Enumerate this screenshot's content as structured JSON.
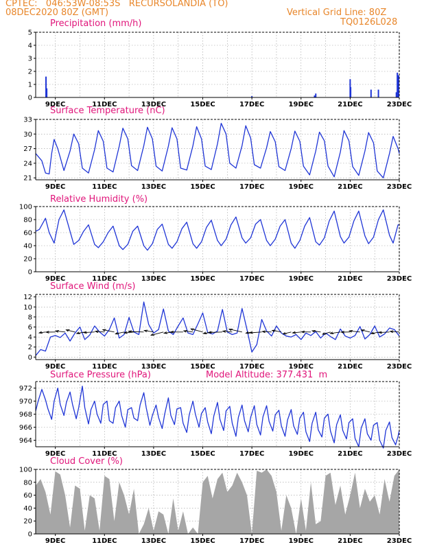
{
  "header": {
    "line1": "CPTEC:   046:53W-08:53S   RECURSOLANDIA (TO)",
    "line2": "08DEC2020 80Z (GMT)",
    "grid_note": "Vertical Grid Line: 80Z",
    "code": "TQ0126L028"
  },
  "colors": {
    "header": "#e8862a",
    "title": "#e0157a",
    "series": "#1f35d6",
    "cloud": "#a6a6a6",
    "wind_arrow": "#000000"
  },
  "panels": {
    "precip": {
      "title": "Precipitation (mm/h)"
    },
    "temp": {
      "title": "Surface Temperature (nC)"
    },
    "rh": {
      "title": "Relative Humidity (%)"
    },
    "wind": {
      "title": "Surface Wind (m/s)"
    },
    "pressure": {
      "title": "Surface Pressure (hPa)",
      "note": "Model Altitude: 377.431  m"
    },
    "cloud": {
      "title": "Cloud Cover (%)"
    }
  },
  "chart_data": [
    {
      "type": "bar",
      "name": "precip",
      "title": "Precipitation (mm/h)",
      "x_ticks": [
        "9DEC",
        "11DEC",
        "13DEC",
        "15DEC",
        "17DEC",
        "19DEC",
        "21DEC",
        "23DEC"
      ],
      "x_range_days": [
        8.2,
        23.0
      ],
      "ylim": [
        0,
        5
      ],
      "y_ticks": [
        0,
        1,
        2,
        3,
        4,
        5
      ],
      "bars": [
        [
          8.62,
          1.6
        ],
        [
          8.65,
          0.7
        ],
        [
          17.0,
          0.1
        ],
        [
          19.55,
          0.15
        ],
        [
          19.6,
          0.3
        ],
        [
          21.0,
          1.4
        ],
        [
          21.02,
          0.8
        ],
        [
          21.85,
          0.6
        ],
        [
          22.15,
          0.6
        ],
        [
          22.88,
          0.4
        ],
        [
          22.92,
          1.9
        ],
        [
          22.97,
          1.7
        ]
      ]
    },
    {
      "type": "line",
      "name": "temp",
      "title": "Surface Temperature (nC)",
      "x_range_days": [
        8.2,
        23.0
      ],
      "ylim": [
        20.6,
        33
      ],
      "y_ticks": [
        21,
        24,
        27,
        30,
        33
      ],
      "x": [
        8.2,
        8.45,
        8.6,
        8.75,
        8.85,
        8.95,
        9.1,
        9.35,
        9.6,
        9.75,
        9.95,
        10.1,
        10.35,
        10.6,
        10.75,
        10.95,
        11.1,
        11.35,
        11.6,
        11.75,
        11.95,
        12.1,
        12.35,
        12.6,
        12.75,
        12.95,
        13.1,
        13.35,
        13.6,
        13.75,
        13.95,
        14.1,
        14.35,
        14.6,
        14.75,
        14.95,
        15.1,
        15.35,
        15.6,
        15.75,
        15.95,
        16.1,
        16.35,
        16.6,
        16.75,
        16.95,
        17.1,
        17.35,
        17.6,
        17.75,
        17.95,
        18.1,
        18.35,
        18.6,
        18.75,
        18.95,
        19.1,
        19.35,
        19.6,
        19.75,
        19.95,
        20.1,
        20.35,
        20.6,
        20.75,
        20.95,
        21.1,
        21.35,
        21.6,
        21.75,
        21.95,
        22.1,
        22.35,
        22.6,
        22.75,
        22.95,
        23.0
      ],
      "values": [
        26.0,
        24.5,
        22.0,
        21.8,
        26,
        28.9,
        27,
        22.5,
        26.5,
        30.0,
        28,
        23,
        22.0,
        26.8,
        30.7,
        28.5,
        23.0,
        22.2,
        27.5,
        31.2,
        29,
        23.5,
        22.5,
        27.6,
        31.4,
        29,
        23.4,
        22.4,
        27.5,
        31.3,
        29,
        23.0,
        22.6,
        27.6,
        31.5,
        29,
        23.4,
        22.7,
        28.0,
        32.2,
        30,
        24.0,
        23.0,
        27.6,
        31.7,
        29.2,
        23.7,
        23.0,
        27.2,
        30.5,
        28.4,
        23.3,
        22.5,
        27.0,
        30.6,
        28.5,
        23.4,
        21.6,
        26.5,
        30.4,
        28.6,
        23.4,
        21.2,
        26.3,
        30.7,
        28.6,
        23.3,
        21.5,
        26.5,
        30.3,
        28.2,
        22.4,
        21.0,
        26.0,
        29.5,
        27.0,
        26.0
      ]
    },
    {
      "type": "line",
      "name": "rh",
      "title": "Relative Humidity (%)",
      "x_range_days": [
        8.2,
        23.0
      ],
      "ylim": [
        0,
        100
      ],
      "y_ticks": [
        0,
        20,
        40,
        60,
        80,
        100
      ],
      "x": [
        8.2,
        8.35,
        8.6,
        8.75,
        8.95,
        9.15,
        9.35,
        9.6,
        9.75,
        9.95,
        10.15,
        10.35,
        10.6,
        10.75,
        10.95,
        11.15,
        11.35,
        11.6,
        11.75,
        11.95,
        12.15,
        12.35,
        12.6,
        12.75,
        12.95,
        13.15,
        13.35,
        13.6,
        13.75,
        13.95,
        14.15,
        14.35,
        14.6,
        14.75,
        14.95,
        15.15,
        15.35,
        15.6,
        15.75,
        15.95,
        16.15,
        16.35,
        16.6,
        16.75,
        16.95,
        17.15,
        17.35,
        17.6,
        17.75,
        17.95,
        18.15,
        18.35,
        18.6,
        18.75,
        18.95,
        19.15,
        19.35,
        19.6,
        19.75,
        19.95,
        20.15,
        20.35,
        20.6,
        20.75,
        20.95,
        21.15,
        21.35,
        21.6,
        21.75,
        21.95,
        22.15,
        22.35,
        22.6,
        22.75,
        22.95,
        23.0
      ],
      "values": [
        62,
        65,
        82,
        60,
        44,
        80,
        95,
        62,
        42,
        48,
        62,
        72,
        42,
        37,
        46,
        60,
        70,
        40,
        34,
        42,
        62,
        70,
        40,
        33,
        43,
        65,
        73,
        42,
        36,
        46,
        66,
        76,
        43,
        36,
        46,
        68,
        79,
        48,
        40,
        50,
        72,
        84,
        52,
        44,
        52,
        73,
        80,
        48,
        40,
        50,
        70,
        80,
        44,
        36,
        48,
        70,
        83,
        46,
        41,
        52,
        78,
        93,
        54,
        44,
        53,
        78,
        93,
        55,
        43,
        53,
        80,
        95,
        56,
        44,
        72,
        72
      ]
    },
    {
      "type": "line",
      "name": "wind",
      "title": "Surface Wind (m/s)",
      "x_range_days": [
        8.2,
        23.0
      ],
      "ylim": [
        -0.5,
        12.5
      ],
      "y_ticks": [
        0,
        2,
        4,
        6,
        8,
        10,
        12
      ],
      "x": [
        8.2,
        8.4,
        8.6,
        8.8,
        9.0,
        9.2,
        9.4,
        9.6,
        9.8,
        10.0,
        10.2,
        10.4,
        10.6,
        10.8,
        11.0,
        11.2,
        11.4,
        11.6,
        11.8,
        12.0,
        12.2,
        12.4,
        12.6,
        12.8,
        13.0,
        13.2,
        13.4,
        13.6,
        13.8,
        14.0,
        14.2,
        14.4,
        14.6,
        14.8,
        15.0,
        15.2,
        15.4,
        15.6,
        15.8,
        16.0,
        16.2,
        16.4,
        16.6,
        16.8,
        17.0,
        17.2,
        17.4,
        17.6,
        17.8,
        18.0,
        18.2,
        18.4,
        18.6,
        18.8,
        19.0,
        19.2,
        19.4,
        19.6,
        19.8,
        20.0,
        20.2,
        20.4,
        20.6,
        20.8,
        21.0,
        21.2,
        21.4,
        21.6,
        21.8,
        22.0,
        22.2,
        22.4,
        22.6,
        22.8,
        23.0
      ],
      "values": [
        0.3,
        1.5,
        1.2,
        4.0,
        4.3,
        3.9,
        4.8,
        3.2,
        4.8,
        6.0,
        3.5,
        4.4,
        6.2,
        5.0,
        4.2,
        5.5,
        7.8,
        3.8,
        4.5,
        7.9,
        5.0,
        4.5,
        11.0,
        6.5,
        4.8,
        5.5,
        9.6,
        5.2,
        4.5,
        6.2,
        7.8,
        4.8,
        4.5,
        6.6,
        8.8,
        4.9,
        4.6,
        5.2,
        9.5,
        5.0,
        4.5,
        4.8,
        9.7,
        5.5,
        1.0,
        2.5,
        7.5,
        5.2,
        4.2,
        6.2,
        4.8,
        4.2,
        4.0,
        4.5,
        3.5,
        4.8,
        4.3,
        5.1,
        3.8,
        4.8,
        4.1,
        3.5,
        5.6,
        4.2,
        3.8,
        4.3,
        6.1,
        3.6,
        4.5,
        6.2,
        4.0,
        4.6,
        5.8,
        5.5,
        4.2
      ]
    },
    {
      "type": "line",
      "name": "pressure",
      "title": "Surface Pressure (hPa)",
      "note": "Model Altitude: 377.431 m",
      "x_range_days": [
        8.2,
        23.0
      ],
      "ylim": [
        963,
        973
      ],
      "y_ticks": [
        964,
        966,
        968,
        970,
        972
      ],
      "x": [
        8.2,
        8.3,
        8.45,
        8.6,
        8.7,
        8.85,
        8.95,
        9.1,
        9.2,
        9.35,
        9.45,
        9.6,
        9.7,
        9.85,
        9.95,
        10.1,
        10.2,
        10.35,
        10.45,
        10.6,
        10.7,
        10.85,
        10.95,
        11.1,
        11.2,
        11.35,
        11.45,
        11.6,
        11.7,
        11.85,
        11.95,
        12.1,
        12.2,
        12.35,
        12.45,
        12.6,
        12.7,
        12.85,
        12.95,
        13.1,
        13.2,
        13.35,
        13.45,
        13.6,
        13.7,
        13.85,
        13.95,
        14.1,
        14.2,
        14.35,
        14.45,
        14.6,
        14.7,
        14.85,
        14.95,
        15.1,
        15.2,
        15.35,
        15.45,
        15.6,
        15.7,
        15.85,
        15.95,
        16.1,
        16.2,
        16.35,
        16.45,
        16.6,
        16.7,
        16.85,
        16.95,
        17.1,
        17.2,
        17.35,
        17.45,
        17.6,
        17.7,
        17.85,
        17.95,
        18.1,
        18.2,
        18.35,
        18.45,
        18.6,
        18.7,
        18.85,
        18.95,
        19.1,
        19.2,
        19.35,
        19.45,
        19.6,
        19.7,
        19.85,
        19.95,
        20.1,
        20.2,
        20.35,
        20.45,
        20.6,
        20.7,
        20.85,
        20.95,
        21.1,
        21.2,
        21.35,
        21.45,
        21.6,
        21.7,
        21.85,
        21.95,
        22.1,
        22.2,
        22.35,
        22.45,
        22.6,
        22.7,
        22.85,
        22.95,
        23.0
      ],
      "values": [
        968.5,
        970.0,
        971.8,
        970.2,
        968.8,
        967.2,
        970.0,
        972.0,
        969.5,
        967.8,
        969.8,
        971.4,
        969.5,
        967.3,
        969.0,
        972.3,
        969.0,
        966.5,
        968.7,
        970.0,
        968.0,
        966.6,
        969.5,
        970.0,
        967.0,
        966.6,
        969.0,
        970.0,
        967.8,
        966.0,
        968.7,
        969.0,
        967.4,
        967.0,
        969.4,
        971.3,
        969.0,
        966.3,
        967.8,
        969.4,
        967.5,
        965.8,
        968.0,
        970.5,
        967.8,
        966.4,
        968.8,
        969.0,
        966.6,
        965.2,
        967.9,
        970.0,
        968.0,
        966.0,
        968.1,
        969.0,
        966.8,
        965.0,
        967.7,
        969.8,
        967.2,
        965.5,
        968.5,
        969.2,
        966.6,
        964.6,
        967.5,
        969.4,
        967.0,
        965.3,
        967.5,
        969.3,
        966.4,
        964.8,
        967.6,
        969.3,
        966.9,
        965.4,
        967.9,
        968.6,
        966.2,
        964.6,
        967.1,
        968.7,
        966.2,
        964.9,
        967.4,
        968.3,
        965.3,
        963.8,
        966.6,
        968.3,
        965.6,
        964.5,
        967.4,
        968.0,
        965.4,
        963.6,
        966.4,
        967.9,
        965.5,
        964.2,
        966.7,
        967.3,
        964.3,
        963.0,
        965.9,
        967.3,
        965.0,
        964.0,
        966.3,
        966.7,
        964.0,
        962.8,
        965.5,
        966.8,
        964.4,
        963.3,
        964.6,
        965.5
      ]
    },
    {
      "type": "area",
      "name": "cloud",
      "title": "Cloud Cover (%)",
      "x_range_days": [
        8.2,
        23.0
      ],
      "ylim": [
        0,
        100
      ],
      "y_ticks": [
        0,
        20,
        40,
        60,
        80,
        100
      ],
      "x": [
        8.2,
        8.4,
        8.6,
        8.8,
        9.0,
        9.2,
        9.4,
        9.6,
        9.8,
        10.0,
        10.2,
        10.4,
        10.6,
        10.8,
        11.0,
        11.2,
        11.4,
        11.6,
        11.8,
        12.0,
        12.2,
        12.4,
        12.6,
        12.8,
        13.0,
        13.2,
        13.4,
        13.6,
        13.8,
        14.0,
        14.2,
        14.4,
        14.6,
        14.8,
        15.0,
        15.2,
        15.4,
        15.6,
        15.8,
        16.0,
        16.2,
        16.4,
        16.6,
        16.8,
        17.0,
        17.2,
        17.4,
        17.6,
        17.8,
        18.0,
        18.2,
        18.4,
        18.6,
        18.8,
        19.0,
        19.2,
        19.4,
        19.6,
        19.8,
        20.0,
        20.2,
        20.4,
        20.6,
        20.8,
        21.0,
        21.2,
        21.4,
        21.6,
        21.8,
        22.0,
        22.2,
        22.4,
        22.6,
        22.8,
        23.0
      ],
      "values": [
        75,
        85,
        65,
        30,
        97,
        92,
        60,
        10,
        75,
        70,
        5,
        60,
        55,
        5,
        90,
        85,
        20,
        80,
        60,
        30,
        70,
        0,
        15,
        40,
        5,
        35,
        30,
        0,
        55,
        5,
        35,
        0,
        10,
        0,
        80,
        90,
        55,
        85,
        95,
        65,
        75,
        95,
        80,
        60,
        0,
        98,
        95,
        100,
        90,
        65,
        5,
        60,
        40,
        0,
        55,
        5,
        80,
        15,
        20,
        90,
        95,
        45,
        75,
        30,
        60,
        95,
        40,
        70,
        50,
        60,
        30,
        85,
        50,
        90,
        100
      ]
    }
  ]
}
